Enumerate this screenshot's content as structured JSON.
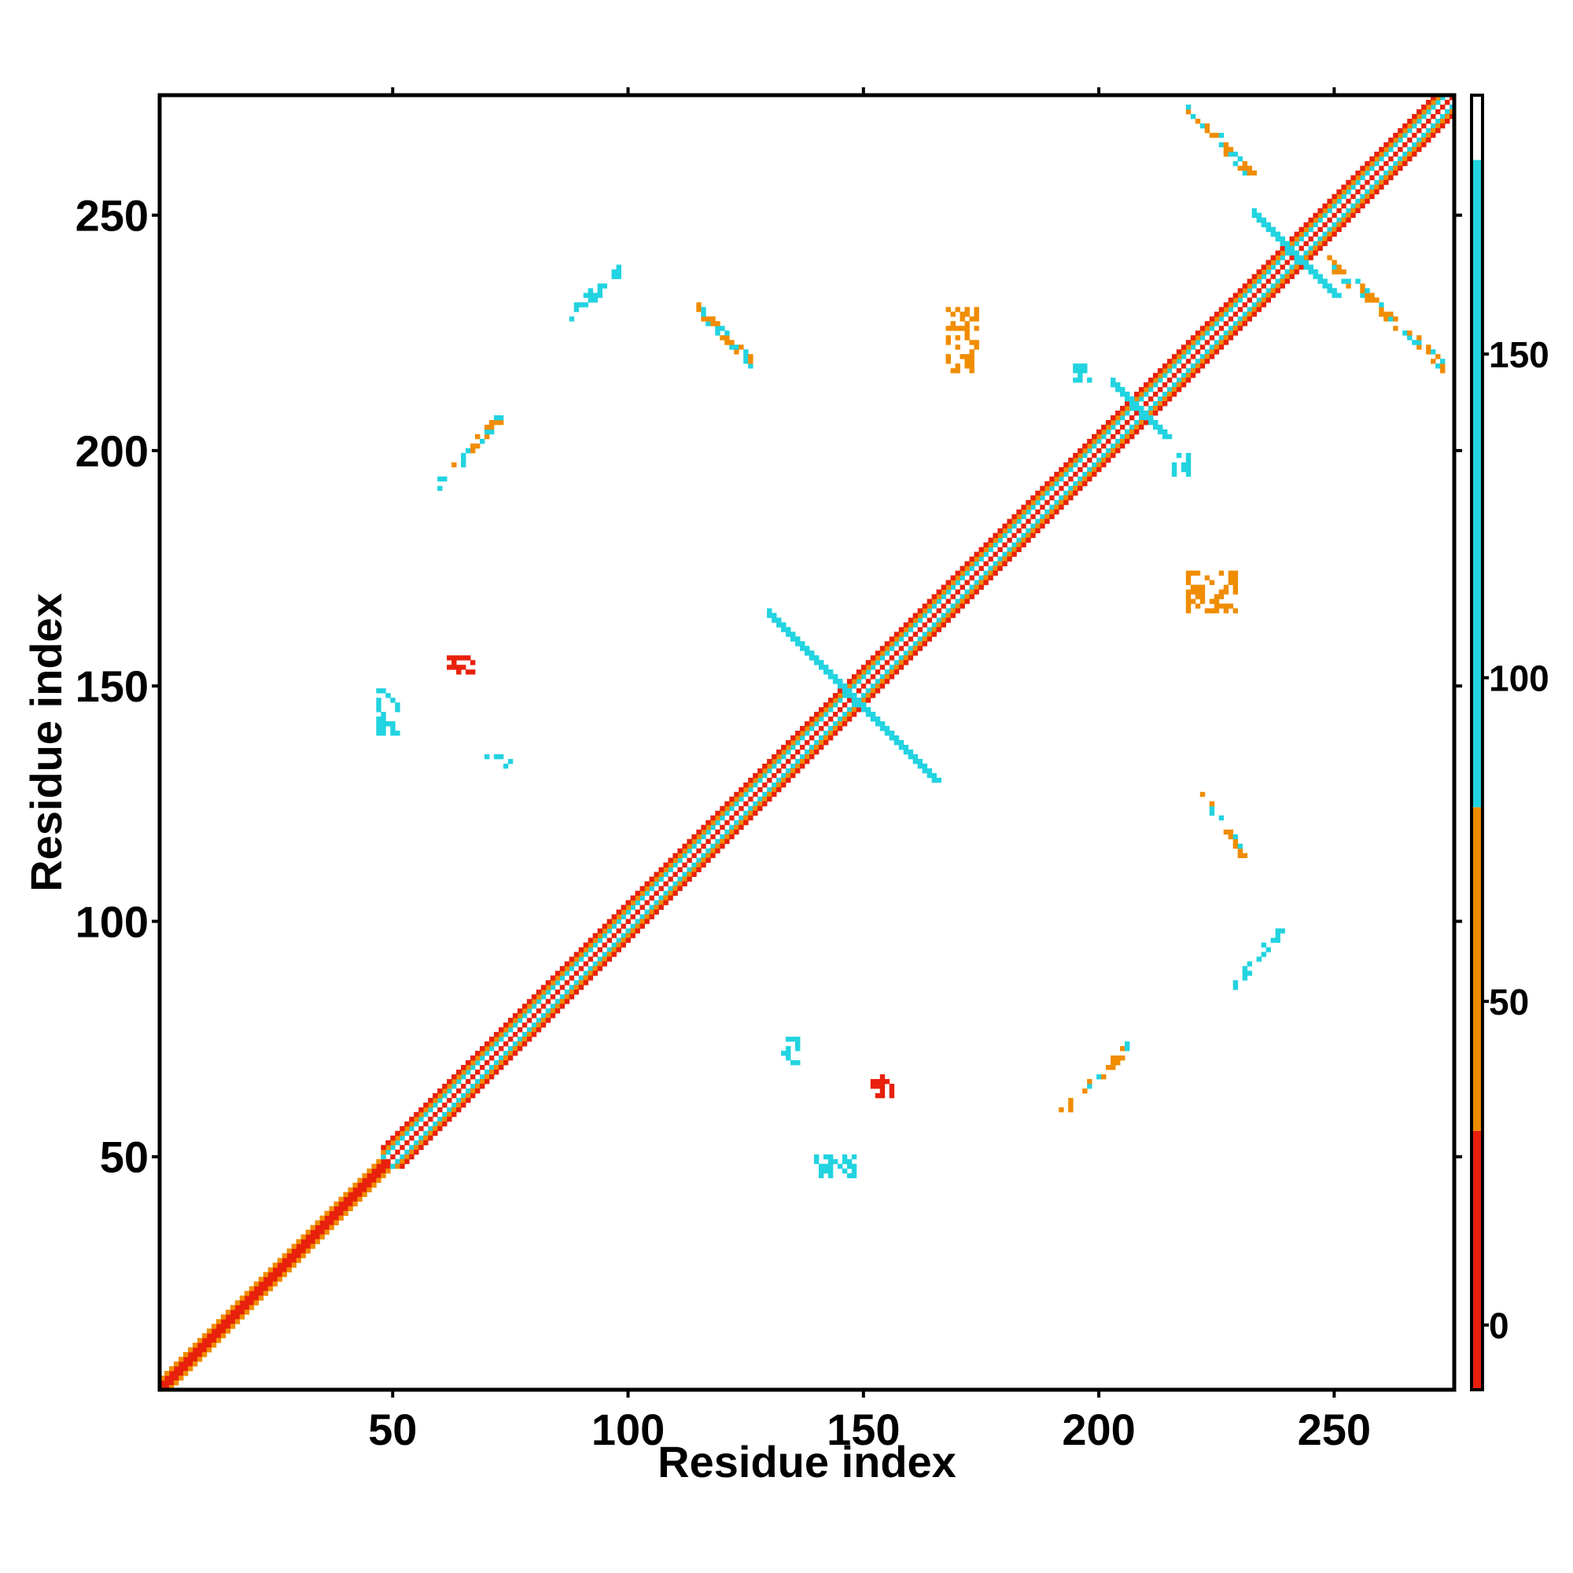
{
  "chart_data": {
    "type": "heatmap",
    "title": "",
    "xlabel": "Residue index",
    "ylabel": "Residue index",
    "xlim": [
      0.5,
      275.5
    ],
    "ylim": [
      0.5,
      275.5
    ],
    "x_ticks": [
      50,
      100,
      150,
      200,
      250
    ],
    "y_ticks": [
      50,
      100,
      150,
      200,
      250
    ],
    "x_tick_labels": [
      "50",
      "100",
      "150",
      "200",
      "250"
    ],
    "y_tick_labels": [
      "50",
      "100",
      "150",
      "200",
      "250"
    ],
    "grid": false,
    "legend": "none",
    "colorbar": {
      "placement": "right",
      "range": [
        -10,
        190
      ],
      "ticks": [
        0,
        50,
        100,
        150
      ],
      "tick_labels": [
        "0",
        "50",
        "100",
        "150"
      ],
      "segments": [
        {
          "from": -10,
          "to": 30,
          "color": "#e8200c"
        },
        {
          "from": 30,
          "to": 80,
          "color": "#f08c00"
        },
        {
          "from": 80,
          "to": 180,
          "color": "#22d3e0"
        },
        {
          "from": 180,
          "to": 190,
          "color": "#ffffff"
        }
      ]
    },
    "value_colors": {
      "red": "#e8200c",
      "orange": "#f08c00",
      "light_orange": "#f5a623",
      "cyan": "#22d3e0",
      "steel_blue": "#4a8fd8"
    },
    "contact_regions": [
      {
        "x": [
          1,
          275
        ],
        "y": [
          1,
          275
        ],
        "kind": "diagonal",
        "offset": 0,
        "value": 0,
        "label": "main diagonal"
      },
      {
        "x": [
          1,
          48
        ],
        "y": [
          1,
          48
        ],
        "kind": "diagonal",
        "offset": 1,
        "value": 20
      },
      {
        "x": [
          1,
          48
        ],
        "y": [
          1,
          48
        ],
        "kind": "diagonal",
        "offset": 2,
        "value": 60
      },
      {
        "x": [
          48,
          275
        ],
        "y": [
          48,
          275
        ],
        "kind": "diagonal",
        "offset": 2,
        "value": 90
      },
      {
        "x": [
          48,
          275
        ],
        "y": [
          48,
          275
        ],
        "kind": "diagonal",
        "offset": 3,
        "value": 60
      },
      {
        "x": [
          48,
          275
        ],
        "y": [
          48,
          275
        ],
        "kind": "diagonal",
        "offset": 4,
        "value": 20
      },
      {
        "x": [
          130,
          165
        ],
        "y": [
          130,
          165
        ],
        "kind": "antidiagonal",
        "value": 150,
        "label": "hairpin cross"
      },
      {
        "x": [
          203,
          214
        ],
        "y": [
          203,
          214
        ],
        "kind": "antidiagonal",
        "value": 110
      },
      {
        "x": [
          233,
          250
        ],
        "y": [
          233,
          250
        ],
        "kind": "antidiagonal",
        "value": 100
      },
      {
        "x": [
          219,
          233
        ],
        "y": [
          258,
          273
        ],
        "kind": "antidiagonal_block",
        "value": 60
      },
      {
        "x": [
          249,
          273
        ],
        "y": [
          218,
          240
        ],
        "kind": "antidiagonal_block",
        "value": 60
      },
      {
        "x": [
          60,
          73
        ],
        "y": [
          193,
          207
        ],
        "kind": "diagonal_block",
        "value": 50
      },
      {
        "x": [
          192,
          206
        ],
        "y": [
          59,
          73
        ],
        "kind": "diagonal_block",
        "value": 50
      },
      {
        "x": [
          168,
          174
        ],
        "y": [
          217,
          230
        ],
        "kind": "block",
        "value": 40
      },
      {
        "x": [
          219,
          229
        ],
        "y": [
          166,
          174
        ],
        "kind": "block",
        "value": 40
      },
      {
        "x": [
          47,
          51
        ],
        "y": [
          140,
          149
        ],
        "kind": "block",
        "value": 100
      },
      {
        "x": [
          70,
          75
        ],
        "y": [
          133,
          135
        ],
        "kind": "block",
        "value": 100
      },
      {
        "x": [
          140,
          148
        ],
        "y": [
          46,
          50
        ],
        "kind": "block",
        "value": 100
      },
      {
        "x": [
          133,
          136
        ],
        "y": [
          70,
          75
        ],
        "kind": "block",
        "value": 100
      },
      {
        "x": [
          87,
          98
        ],
        "y": [
          228,
          238
        ],
        "kind": "diagonal_block",
        "value": 100
      },
      {
        "x": [
          229,
          239
        ],
        "y": [
          87,
          98
        ],
        "kind": "diagonal_block",
        "value": 100
      },
      {
        "x": [
          115,
          126
        ],
        "y": [
          219,
          230
        ],
        "kind": "antidiagonal_block",
        "value": 55
      },
      {
        "x": [
          222,
          232
        ],
        "y": [
          112,
          127
        ],
        "kind": "antidiagonal_block",
        "value": 55
      },
      {
        "x": [
          195,
          198
        ],
        "y": [
          215,
          218
        ],
        "kind": "block",
        "value": 100
      },
      {
        "x": [
          215,
          219
        ],
        "y": [
          195,
          199
        ],
        "kind": "block",
        "value": 100
      },
      {
        "x": [
          62,
          67
        ],
        "y": [
          152,
          156
        ],
        "kind": "block",
        "value": 15
      },
      {
        "x": [
          152,
          156
        ],
        "y": [
          62,
          67
        ],
        "kind": "block",
        "value": 15
      }
    ]
  }
}
